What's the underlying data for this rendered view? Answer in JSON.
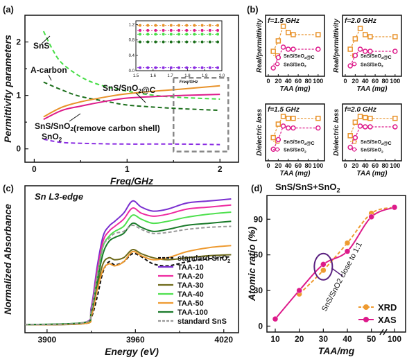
{
  "chart_data": [
    {
      "panel": "(a)",
      "type": "line",
      "xlabel": "Freq/GHz",
      "ylabel": "Permittivity parameters",
      "xlim": [
        -0.1,
        2.2
      ],
      "ylim": [
        -0.25,
        2.5
      ],
      "xticks": [
        "0",
        "1",
        "2"
      ],
      "yticks": [
        "0",
        "1",
        "2"
      ],
      "series": [
        {
          "name": "SnS",
          "color": "#44dd44",
          "style": "dashed",
          "x": [
            0.1,
            0.2,
            0.3,
            0.5,
            0.7,
            1.0,
            1.3,
            1.6,
            2.0
          ],
          "y": [
            2.2,
            1.85,
            1.6,
            1.35,
            1.2,
            1.08,
            1.0,
            0.96,
            0.93
          ]
        },
        {
          "name": "A-carbon",
          "color": "#1a6e1a",
          "style": "dashed",
          "x": [
            0.1,
            0.3,
            0.5,
            0.8,
            1.0,
            1.3,
            1.6,
            2.0
          ],
          "y": [
            1.25,
            1.1,
            0.98,
            0.88,
            0.82,
            0.78,
            0.75,
            0.72
          ]
        },
        {
          "name": "SnS/SnO2@C",
          "color": "#e8922a",
          "style": "solid",
          "x": [
            0.1,
            0.3,
            0.5,
            0.8,
            1.0,
            1.3,
            1.6,
            2.0
          ],
          "y": [
            0.6,
            0.78,
            0.88,
            0.98,
            1.03,
            1.08,
            1.12,
            1.18
          ]
        },
        {
          "name": "SnS/SnO2(remove carbon shell)",
          "color": "#dd1a8a",
          "style": "solid",
          "x": [
            0.1,
            0.3,
            0.5,
            0.8,
            1.0,
            1.3,
            1.6,
            2.0
          ],
          "y": [
            0.55,
            0.72,
            0.8,
            0.9,
            0.95,
            0.98,
            1.0,
            1.02
          ]
        },
        {
          "name": "SnO2",
          "color": "#8a2be2",
          "style": "dashed",
          "x": [
            0.1,
            0.3,
            0.6,
            1.0,
            1.5,
            2.0
          ],
          "y": [
            0.18,
            0.12,
            0.1,
            0.09,
            0.09,
            0.08
          ]
        }
      ],
      "inset": {
        "xlabel": "Freq/GHz",
        "xticks": [
          "1.5",
          "1.6",
          "1.7",
          "1.8",
          "1.9",
          "2.0"
        ],
        "yticks": [
          "0.0",
          "0.4",
          "0.8",
          "1.2"
        ],
        "series": [
          {
            "color": "#e8922a",
            "y": 1.18
          },
          {
            "color": "#dd1a8a",
            "y": 1.05
          },
          {
            "color": "#44dd44",
            "y": 0.95
          },
          {
            "color": "#1a6e1a",
            "y": 0.75
          },
          {
            "color": "#8a2be2",
            "y": 0.08
          }
        ]
      }
    },
    {
      "panel": "(b)",
      "type": "line",
      "subplots": [
        {
          "title": "f=1.5 GHz",
          "ylabel": "Real/permittivity",
          "xlabel": "TAA (mg)",
          "xticks": [
            "0",
            "20",
            "40",
            "60",
            "80",
            "100"
          ],
          "x": [
            10,
            20,
            30,
            40,
            50,
            100
          ],
          "ylim": [
            0,
            28
          ],
          "series": [
            {
              "name": "SnS/SnO2@C",
              "color": "#e8922a",
              "marker": "square",
              "y": [
                12,
                17,
                24,
                21,
                20,
                20
              ]
            },
            {
              "name": "SnS/SnO2",
              "color": "#dd1a8a",
              "marker": "circle",
              "y": [
                4,
                9,
                14,
                13,
                13,
                13
              ]
            }
          ]
        },
        {
          "title": "f=2.0 GHz",
          "ylabel": "Real/permittivity",
          "xlabel": "TAA (mg)",
          "xticks": [
            "0",
            "20",
            "40",
            "60",
            "80",
            "100"
          ],
          "x": [
            10,
            20,
            30,
            40,
            50,
            100
          ],
          "ylim": [
            0,
            28
          ],
          "series": [
            {
              "name": "SnS/SnO2@C",
              "color": "#e8922a",
              "marker": "square",
              "y": [
                13,
                18,
                23,
                20,
                19,
                19
              ]
            },
            {
              "name": "SnS/SnO2",
              "color": "#dd1a8a",
              "marker": "circle",
              "y": [
                5,
                10,
                13,
                12,
                12,
                12
              ]
            }
          ]
        },
        {
          "title": "f=1.5 GHz",
          "ylabel": "Dielectric loss",
          "xlabel": "TAA (mg)",
          "xticks": [
            "0",
            "20",
            "40",
            "60",
            "80",
            "100"
          ],
          "x": [
            10,
            20,
            30,
            40,
            50,
            100
          ],
          "ylim": [
            0,
            1.4
          ],
          "series": [
            {
              "name": "SnS/SnO2@C",
              "color": "#e8922a",
              "marker": "square",
              "y": [
                0.6,
                0.95,
                1.15,
                1.1,
                1.1,
                1.1
              ]
            },
            {
              "name": "SnS/SnO2",
              "color": "#dd1a8a",
              "marker": "circle",
              "y": [
                0.3,
                0.55,
                0.9,
                0.85,
                0.85,
                0.85
              ]
            }
          ]
        },
        {
          "title": "f=2.0 GHz",
          "ylabel": "Dielectric loss",
          "xlabel": "TAA (mg)",
          "xticks": [
            "0",
            "20",
            "40",
            "60",
            "80",
            "100"
          ],
          "x": [
            10,
            20,
            30,
            40,
            50,
            100
          ],
          "ylim": [
            0,
            1.4
          ],
          "series": [
            {
              "name": "SnS/SnO2@C",
              "color": "#e8922a",
              "marker": "square",
              "y": [
                0.65,
                1.0,
                1.15,
                1.12,
                1.1,
                1.1
              ]
            },
            {
              "name": "SnS/SnO2",
              "color": "#dd1a8a",
              "marker": "circle",
              "y": [
                0.35,
                0.6,
                0.9,
                0.88,
                0.88,
                0.88
              ]
            }
          ]
        }
      ]
    },
    {
      "panel": "(c)",
      "type": "line",
      "title": "Sn L3-edge",
      "xlabel": "Energy (eV)",
      "ylabel": "Normalized Absorbance",
      "xlim": [
        3885,
        4030
      ],
      "ylim": [
        0,
        1.45
      ],
      "xticks": [
        "3900",
        "3960",
        "4020"
      ],
      "series": [
        {
          "name": "standard SnO2",
          "color": "#111111",
          "style": "dashed",
          "x": [
            3885,
            3925,
            3930,
            3934,
            3938,
            3942,
            3946,
            3952,
            3958,
            3964,
            3972,
            3982,
            3995,
            4010,
            4025
          ],
          "y": [
            0.08,
            0.09,
            0.15,
            0.35,
            0.6,
            0.7,
            0.67,
            0.7,
            0.78,
            0.75,
            0.68,
            0.66,
            0.7,
            0.73,
            0.75
          ]
        },
        {
          "name": "TAA-10",
          "color": "#7a2fd0",
          "style": "solid",
          "x": [
            3885,
            3925,
            3930,
            3934,
            3938,
            3942,
            3946,
            3952,
            3958,
            3964,
            3972,
            3982,
            3995,
            4010,
            4025
          ],
          "y": [
            0.08,
            0.1,
            0.25,
            0.65,
            0.95,
            1.05,
            1.1,
            1.18,
            1.3,
            1.24,
            1.2,
            1.22,
            1.28,
            1.3,
            1.32
          ]
        },
        {
          "name": "TAA-20",
          "color": "#ee2aa0",
          "style": "solid",
          "x": [
            3885,
            3925,
            3930,
            3934,
            3938,
            3942,
            3946,
            3952,
            3958,
            3964,
            3972,
            3982,
            3995,
            4010,
            4025
          ],
          "y": [
            0.08,
            0.1,
            0.22,
            0.6,
            0.9,
            1.0,
            1.05,
            1.12,
            1.23,
            1.18,
            1.15,
            1.17,
            1.22,
            1.24,
            1.26
          ]
        },
        {
          "name": "TAA-30",
          "color": "#6e6a1a",
          "style": "solid",
          "x": [
            3885,
            3925,
            3930,
            3934,
            3938,
            3942,
            3946,
            3952,
            3958,
            3964,
            3972,
            3982,
            3995,
            4010,
            4025
          ],
          "y": [
            0.08,
            0.09,
            0.18,
            0.45,
            0.68,
            0.74,
            0.72,
            0.74,
            0.82,
            0.78,
            0.74,
            0.72,
            0.74,
            0.76,
            0.77
          ]
        },
        {
          "name": "TAA-40",
          "color": "#4ee04e",
          "style": "solid",
          "x": [
            3885,
            3925,
            3930,
            3934,
            3938,
            3942,
            3946,
            3952,
            3958,
            3964,
            3972,
            3982,
            3995,
            4010,
            4025
          ],
          "y": [
            0.08,
            0.1,
            0.2,
            0.55,
            0.85,
            0.95,
            1.0,
            1.05,
            1.16,
            1.12,
            1.08,
            1.1,
            1.14,
            1.17,
            1.19
          ]
        },
        {
          "name": "TAA-50",
          "color": "#ee9a30",
          "style": "solid",
          "x": [
            3885,
            3925,
            3930,
            3934,
            3938,
            3942,
            3946,
            3952,
            3958,
            3964,
            3972,
            3982,
            3995,
            4010,
            4025
          ],
          "y": [
            0.08,
            0.09,
            0.16,
            0.42,
            0.62,
            0.68,
            0.66,
            0.7,
            0.8,
            0.76,
            0.72,
            0.74,
            0.8,
            0.84,
            0.86
          ]
        },
        {
          "name": "TAA-100",
          "color": "#1a7a2a",
          "style": "solid",
          "x": [
            3885,
            3925,
            3930,
            3934,
            3938,
            3942,
            3946,
            3952,
            3958,
            3964,
            3972,
            3982,
            3995,
            4010,
            4025
          ],
          "y": [
            0.08,
            0.1,
            0.2,
            0.5,
            0.78,
            0.9,
            0.94,
            0.98,
            1.08,
            1.04,
            1.0,
            1.02,
            1.06,
            1.08,
            1.1
          ]
        },
        {
          "name": "standard SnS",
          "color": "#999999",
          "style": "dashed",
          "x": [
            3885,
            3925,
            3930,
            3934,
            3938,
            3942,
            3946,
            3952,
            3958,
            3964,
            3972,
            3982,
            3995,
            4010,
            4025
          ],
          "y": [
            0.08,
            0.1,
            0.22,
            0.55,
            0.85,
            0.93,
            0.98,
            1.0,
            1.06,
            1.02,
            0.98,
            0.99,
            1.02,
            1.04,
            1.05
          ]
        }
      ]
    },
    {
      "panel": "(d)",
      "type": "line",
      "title": "SnS/SnS+SnO2",
      "xlabel": "TAA/mg",
      "ylabel": "Atomic ratio (%)",
      "xticks": [
        "10",
        "20",
        "30",
        "40",
        "50",
        "100"
      ],
      "yticks": [
        "0",
        "30",
        "60",
        "90"
      ],
      "annotation": "SnS/SnO2 close to 1:1",
      "series": [
        {
          "name": "XRD",
          "color": "#ee9a30",
          "style": "dashed",
          "marker": "circle",
          "x": [
            20,
            30,
            40,
            50,
            100
          ],
          "y": [
            27,
            47,
            70,
            95,
            100
          ]
        },
        {
          "name": "XAS",
          "color": "#dd1a8a",
          "style": "solid",
          "marker": "circle",
          "x": [
            10,
            20,
            30,
            40,
            50,
            100
          ],
          "y": [
            6,
            30,
            52,
            63,
            92,
            100
          ]
        }
      ]
    }
  ],
  "labels": {
    "a_snS": "SnS",
    "a_acarbon": "A-carbon",
    "a_composite": "SnS/SnO₂@C",
    "a_removed": "SnS/SnO₂(remove carbon shell)",
    "a_snO2": "SnO₂",
    "legend_b_c": "SnS/SnO₂@C",
    "legend_b_s": "SnS/SnO₂"
  }
}
